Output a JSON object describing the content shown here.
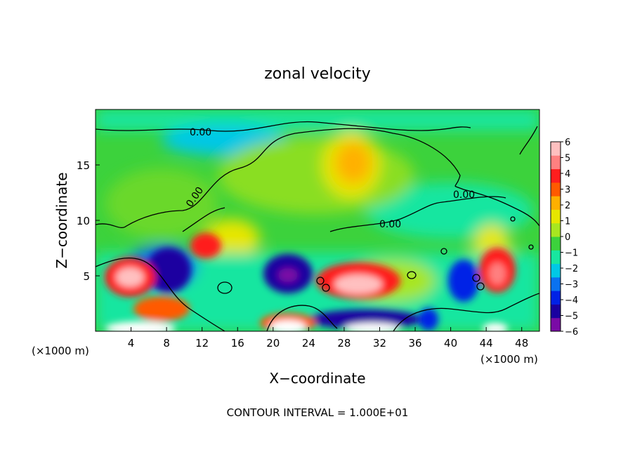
{
  "chart_data": {
    "type": "heatmap",
    "title": "zonal velocity",
    "xlabel": "X−coordinate",
    "ylabel": "Z−coordinate",
    "x_unit_left": "(×1000 m)",
    "x_unit_right": "(×1000 m)",
    "footer": "CONTOUR INTERVAL = 1.000E+01",
    "xlim": [
      0,
      50
    ],
    "ylim": [
      0,
      20
    ],
    "x_ticks": [
      4,
      8,
      12,
      16,
      20,
      24,
      28,
      32,
      36,
      40,
      44,
      48
    ],
    "y_ticks": [
      5,
      10,
      15
    ],
    "colorbar": {
      "ticks": [
        "6",
        "5",
        "4",
        "3",
        "2",
        "1",
        "0",
        "−1",
        "−2",
        "−3",
        "−4",
        "−5",
        "−6"
      ],
      "range": [
        -6,
        6
      ],
      "colors": [
        "#7a0aa6",
        "#1a00a0",
        "#0022e6",
        "#0a72f0",
        "#00c8e6",
        "#18e6a0",
        "#3cd23c",
        "#a8e620",
        "#e6e600",
        "#ffb000",
        "#ff5a00",
        "#ff1e1e",
        "#ff8080",
        "#ffc0c0"
      ]
    },
    "contour_labels": [
      "0.00",
      "0.00",
      "0.00",
      "0.00"
    ],
    "grid": false
  }
}
